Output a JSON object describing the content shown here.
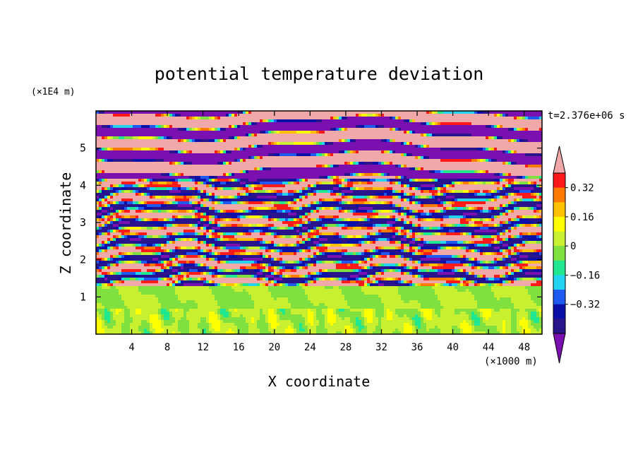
{
  "chart_data": {
    "type": "heatmap",
    "title": "potential temperature deviation",
    "xlabel": "X coordinate",
    "ylabel": "Z coordinate",
    "x_unit": "(×1000 m)",
    "y_unit": "(×1E4 m)",
    "time_label": "t=2.376e+06 s",
    "xlim": [
      0,
      50
    ],
    "ylim": [
      0,
      6
    ],
    "x_ticks": [
      4,
      8,
      12,
      16,
      20,
      24,
      28,
      32,
      36,
      40,
      44,
      48
    ],
    "x_tick_labels": [
      "4",
      "8",
      "12",
      "16",
      "20",
      "24",
      "28",
      "32",
      "36",
      "40",
      "44",
      "48"
    ],
    "y_ticks": [
      1,
      2,
      3,
      4,
      5
    ],
    "y_tick_labels": [
      "1",
      "2",
      "3",
      "4",
      "5"
    ],
    "colorbar": {
      "levels": [
        -0.48,
        -0.4,
        -0.32,
        -0.24,
        -0.16,
        -0.08,
        0,
        0.08,
        0.16,
        0.24,
        0.32,
        0.4,
        0.48
      ],
      "colors": [
        "#7a10b0",
        "#2a148c",
        "#0a0fa8",
        "#1e5af0",
        "#22d4f0",
        "#20e890",
        "#80e040",
        "#c8f030",
        "#ffff00",
        "#ffc000",
        "#ff7a00",
        "#ff1a1a",
        "#f0a8a8"
      ],
      "tick_values": [
        0.32,
        0.16,
        0,
        -0.16,
        -0.32
      ],
      "tick_labels": [
        "0.32",
        "0.16",
        "0",
        "−0.16",
        "−0.32"
      ],
      "extend": "both"
    },
    "field_structure": [
      {
        "z_range": [
          0,
          0.7
        ],
        "description_values": [
          -0.08,
          0.16
        ]
      },
      {
        "z_range": [
          0.7,
          1.3
        ],
        "description_values": [
          -0.08,
          0.08
        ]
      },
      {
        "z_range": [
          1.3,
          4.2
        ],
        "description_values": [
          -0.48,
          0.48
        ]
      },
      {
        "z_range": [
          4.2,
          6
        ],
        "description_values": [
          -0.48,
          0.48
        ]
      }
    ]
  }
}
